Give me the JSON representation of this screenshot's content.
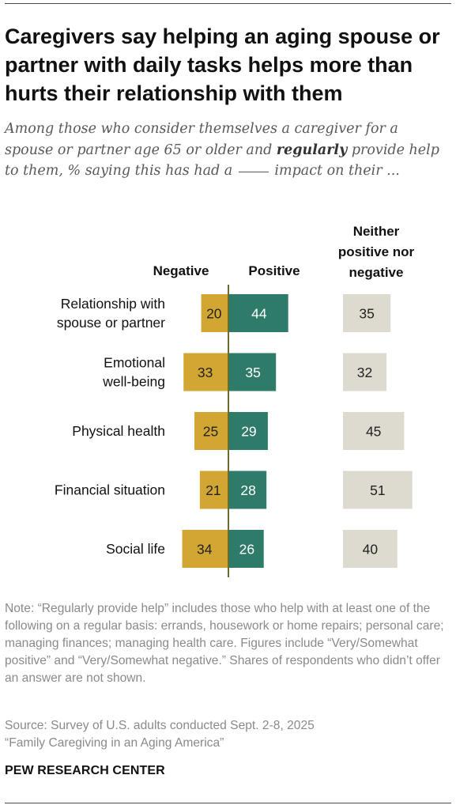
{
  "title": "Caregivers say helping an aging spouse or partner with daily tasks helps more than hurts their relationship with them",
  "subtitle": {
    "part1": "Among those who consider themselves a caregiver for a spouse or partner age 65 or older and",
    "emphasis": "regularly",
    "part2": "provide help to them, % saying this has had a",
    "part3": "impact on their ..."
  },
  "note": "Note: “Regularly provide help” includes those who help with at least one of the following on a regular basis: errands, housework or home repairs; personal care; managing finances; managing health care. Figures include “Very/Somewhat positive” and “Very/Somewhat negative.” Shares of respondents who didn’t offer an answer are not shown.",
  "source_line1": "Source: Survey of U.S. adults conducted Sept. 2-8, 2025",
  "source_line2": "“Family Caregiving in an Aging America”",
  "credit": "PEW RESEARCH CENTER",
  "colors": {
    "negative": "#d1a633",
    "positive": "#2f7b69",
    "neither": "#dddbd0",
    "axis": "#6b6b2e",
    "label_light": "#ffffff",
    "label_dark": "#222222"
  },
  "chart_data": {
    "type": "bar",
    "layout": "diverging with separate neutral column",
    "categories": [
      [
        "Relationship with",
        "spouse or partner"
      ],
      [
        "Emotional",
        "well-being"
      ],
      [
        "Physical health"
      ],
      [
        "Financial situation"
      ],
      [
        "Social life"
      ]
    ],
    "series": [
      {
        "name": "Negative",
        "values": [
          20,
          33,
          25,
          21,
          34
        ]
      },
      {
        "name": "Positive",
        "values": [
          44,
          35,
          29,
          28,
          26
        ]
      },
      {
        "name": "Neither positive nor negative",
        "values": [
          35,
          32,
          45,
          51,
          40
        ]
      }
    ],
    "headers": {
      "negative": "Negative",
      "positive": "Positive",
      "neither": [
        "Neither",
        "positive nor",
        "negative"
      ]
    },
    "unit": "%"
  }
}
